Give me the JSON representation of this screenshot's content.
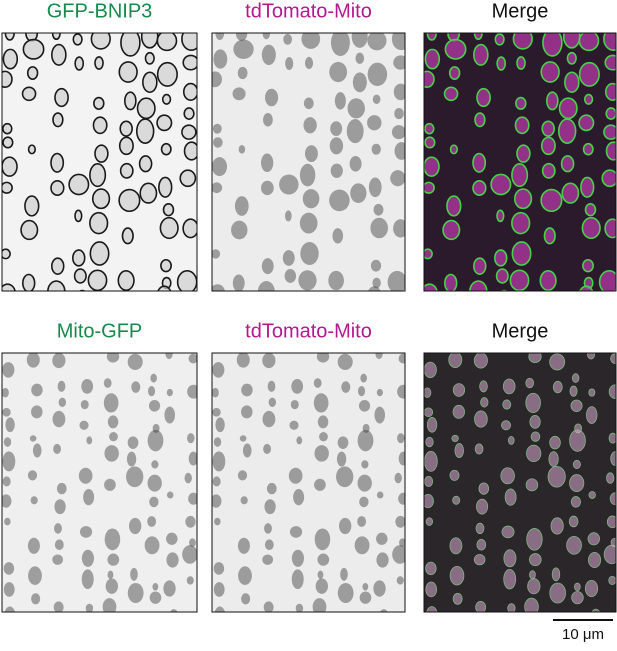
{
  "rows": [
    {
      "panels": [
        {
          "label": "GFP-BNIP3"
        },
        {
          "label": "tdTomato-Mito"
        },
        {
          "label": "Merge"
        }
      ]
    },
    {
      "panels": [
        {
          "label": "Mito-GFP"
        },
        {
          "label": "tdTomato-Mito"
        },
        {
          "label": "Merge"
        }
      ]
    }
  ],
  "scale_bar": {
    "label": "10 μm"
  }
}
